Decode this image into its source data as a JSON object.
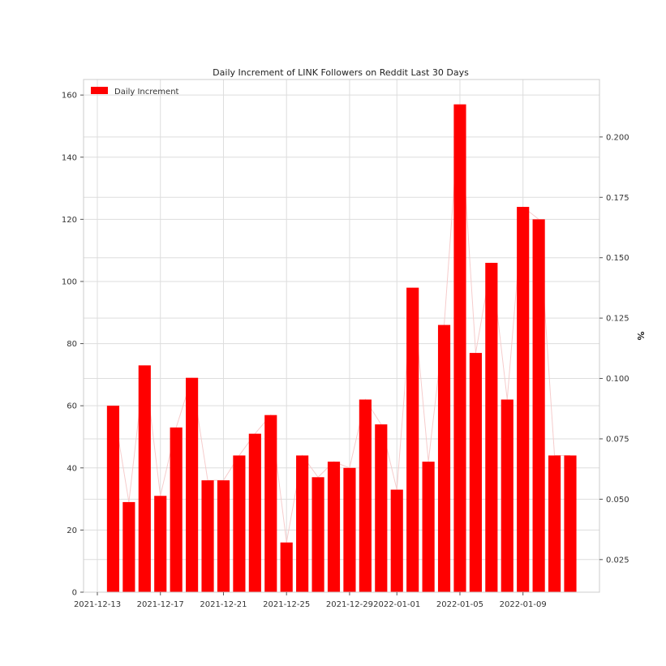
{
  "chart_data": {
    "type": "bar",
    "title": "Daily Increment of LINK Followers on Reddit Last 30 Days",
    "series": [
      {
        "name": "Daily Increment",
        "color": "#ff0000",
        "x": [
          "2021-12-14",
          "2021-12-15",
          "2021-12-16",
          "2021-12-17",
          "2021-12-18",
          "2021-12-19",
          "2021-12-20",
          "2021-12-21",
          "2021-12-22",
          "2021-12-23",
          "2021-12-24",
          "2021-12-25",
          "2021-12-26",
          "2021-12-27",
          "2021-12-28",
          "2021-12-29",
          "2021-12-30",
          "2021-12-31",
          "2022-01-01",
          "2022-01-02",
          "2022-01-03",
          "2022-01-04",
          "2022-01-05",
          "2022-01-06",
          "2022-01-07",
          "2022-01-08",
          "2022-01-09",
          "2022-01-10",
          "2022-01-11",
          "2022-01-12"
        ],
        "values": [
          60,
          29,
          73,
          31,
          53,
          69,
          36,
          36,
          44,
          51,
          57,
          16,
          44,
          37,
          42,
          40,
          62,
          54,
          33,
          98,
          42,
          86,
          157,
          77,
          106,
          62,
          124,
          120,
          44,
          44
        ]
      }
    ],
    "xlim": [
      "2021-12-13",
      "2022-01-12"
    ],
    "xticks": [
      "2021-12-13",
      "2021-12-17",
      "2021-12-21",
      "2021-12-25",
      "2021-12-29",
      "2022-01-01",
      "2022-01-05",
      "2022-01-09"
    ],
    "ylim": [
      0,
      165
    ],
    "yticks": [
      0,
      20,
      40,
      60,
      80,
      100,
      120,
      140,
      160
    ],
    "y2label": "%",
    "y2lim": [
      0.0115,
      0.2238
    ],
    "y2ticks": [
      "0.025",
      "0.050",
      "0.075",
      "0.100",
      "0.125",
      "0.150",
      "0.175",
      "0.200"
    ],
    "grid": true,
    "legend": "top-left"
  }
}
